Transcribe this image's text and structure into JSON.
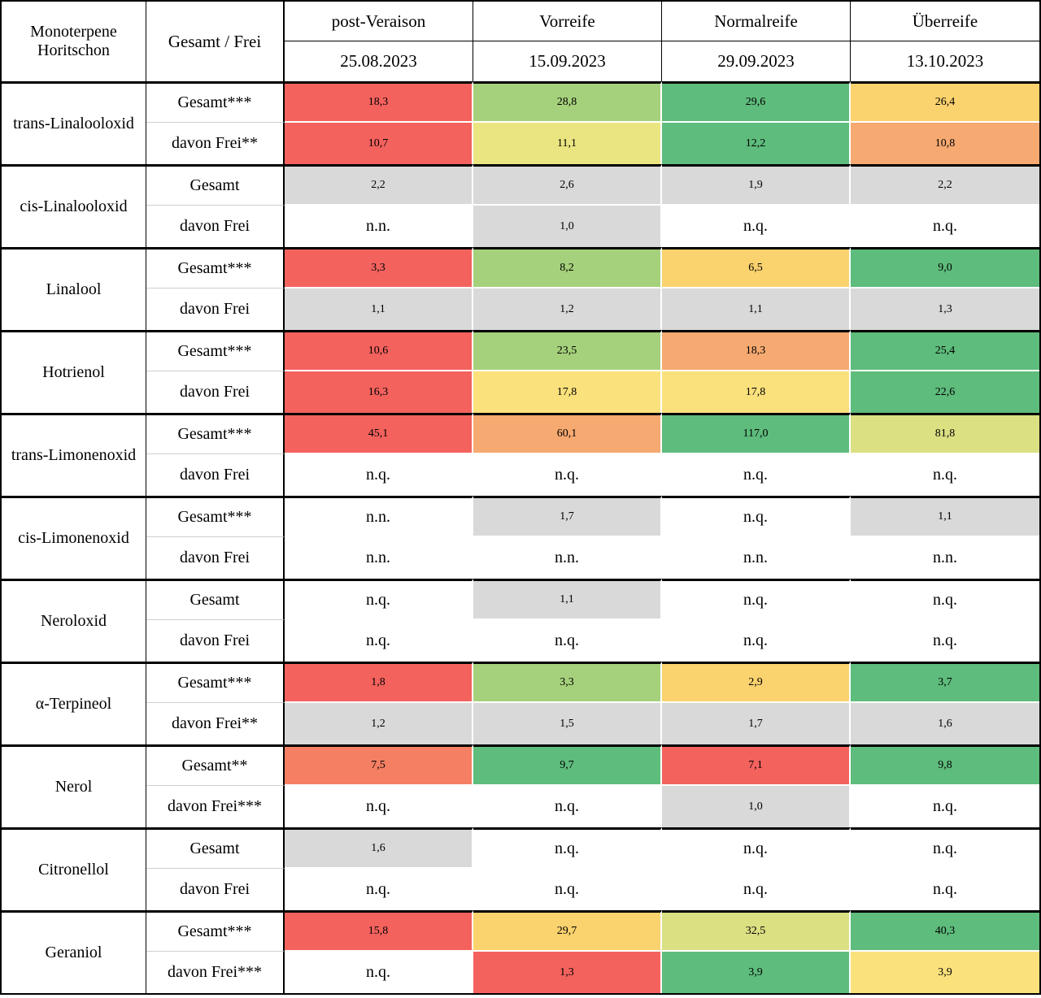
{
  "chart_data": {
    "type": "table",
    "title": "Monoterpene Horitschon",
    "palette": {
      "red": "#F4625E",
      "salmon": "#F57F63",
      "orange": "#F6A971",
      "yellowOrange": "#FAD26E",
      "yellow": "#FAE17C",
      "yellowGreenish": "#EAE581",
      "yellowGreen": "#DBE083",
      "lightGreen": "#A6D17C",
      "green": "#5EBC7C",
      "gray": "#D9D9D9",
      "white": "#FFFFFF"
    },
    "header": {
      "col1": "Monoterpene Horitschon",
      "col2": "Gesamt / Frei",
      "stages": [
        {
          "name": "post-Veraison",
          "date": "25.08.2023"
        },
        {
          "name": "Vorreife",
          "date": "15.09.2023"
        },
        {
          "name": "Normalreife",
          "date": "29.09.2023"
        },
        {
          "name": "Überreife",
          "date": "13.10.2023"
        }
      ]
    },
    "groups": [
      {
        "substance": "trans-Linalooloxid",
        "rows": [
          {
            "label": "Gesamt***",
            "values": [
              "18,3",
              "28,8",
              "29,6",
              "26,4"
            ],
            "colors": [
              "red",
              "lightGreen",
              "green",
              "yellowOrange"
            ]
          },
          {
            "label": "davon Frei**",
            "values": [
              "10,7",
              "11,1",
              "12,2",
              "10,8"
            ],
            "colors": [
              "red",
              "yellowGreenish",
              "green",
              "orange"
            ]
          }
        ]
      },
      {
        "substance": "cis-Linalooloxid",
        "rows": [
          {
            "label": "Gesamt",
            "values": [
              "2,2",
              "2,6",
              "1,9",
              "2,2"
            ],
            "colors": [
              "gray",
              "gray",
              "gray",
              "gray"
            ]
          },
          {
            "label": "davon Frei",
            "values": [
              "n.n.",
              "1,0",
              "n.q.",
              "n.q."
            ],
            "colors": [
              "white",
              "gray",
              "white",
              "white"
            ]
          }
        ]
      },
      {
        "substance": "Linalool",
        "rows": [
          {
            "label": "Gesamt***",
            "values": [
              "3,3",
              "8,2",
              "6,5",
              "9,0"
            ],
            "colors": [
              "red",
              "lightGreen",
              "yellowOrange",
              "green"
            ]
          },
          {
            "label": "davon Frei",
            "values": [
              "1,1",
              "1,2",
              "1,1",
              "1,3"
            ],
            "colors": [
              "gray",
              "gray",
              "gray",
              "gray"
            ]
          }
        ]
      },
      {
        "substance": "Hotrienol",
        "rows": [
          {
            "label": "Gesamt***",
            "values": [
              "10,6",
              "23,5",
              "18,3",
              "25,4"
            ],
            "colors": [
              "red",
              "lightGreen",
              "orange",
              "green"
            ]
          },
          {
            "label": "davon Frei",
            "values": [
              "16,3",
              "17,8",
              "17,8",
              "22,6"
            ],
            "colors": [
              "red",
              "yellow",
              "yellow",
              "green"
            ]
          }
        ]
      },
      {
        "substance": "trans-Limonenoxid",
        "rows": [
          {
            "label": "Gesamt***",
            "values": [
              "45,1",
              "60,1",
              "117,0",
              "81,8"
            ],
            "colors": [
              "red",
              "orange",
              "green",
              "yellowGreen"
            ]
          },
          {
            "label": "davon Frei",
            "values": [
              "n.q.",
              "n.q.",
              "n.q.",
              "n.q."
            ],
            "colors": [
              "white",
              "white",
              "white",
              "white"
            ]
          }
        ]
      },
      {
        "substance": "cis-Limonenoxid",
        "rows": [
          {
            "label": "Gesamt***",
            "values": [
              "n.n.",
              "1,7",
              "n.q.",
              "1,1"
            ],
            "colors": [
              "white",
              "gray",
              "white",
              "gray"
            ]
          },
          {
            "label": "davon Frei",
            "values": [
              "n.n.",
              "n.n.",
              "n.n.",
              "n.n."
            ],
            "colors": [
              "white",
              "white",
              "white",
              "white"
            ]
          }
        ]
      },
      {
        "substance": "Neroloxid",
        "rows": [
          {
            "label": "Gesamt",
            "values": [
              "n.q.",
              "1,1",
              "n.q.",
              "n.q."
            ],
            "colors": [
              "white",
              "gray",
              "white",
              "white"
            ]
          },
          {
            "label": "davon Frei",
            "values": [
              "n.q.",
              "n.q.",
              "n.q.",
              "n.q."
            ],
            "colors": [
              "white",
              "white",
              "white",
              "white"
            ]
          }
        ]
      },
      {
        "substance": "α-Terpineol",
        "rows": [
          {
            "label": "Gesamt***",
            "values": [
              "1,8",
              "3,3",
              "2,9",
              "3,7"
            ],
            "colors": [
              "red",
              "lightGreen",
              "yellowOrange",
              "green"
            ]
          },
          {
            "label": "davon Frei**",
            "values": [
              "1,2",
              "1,5",
              "1,7",
              "1,6"
            ],
            "colors": [
              "gray",
              "gray",
              "gray",
              "gray"
            ]
          }
        ]
      },
      {
        "substance": "Nerol",
        "rows": [
          {
            "label": "Gesamt**",
            "values": [
              "7,5",
              "9,7",
              "7,1",
              "9,8"
            ],
            "colors": [
              "salmon",
              "green",
              "red",
              "green"
            ]
          },
          {
            "label": "davon Frei***",
            "values": [
              "n.q.",
              "n.q.",
              "1,0",
              "n.q."
            ],
            "colors": [
              "white",
              "white",
              "gray",
              "white"
            ]
          }
        ]
      },
      {
        "substance": "Citronellol",
        "rows": [
          {
            "label": "Gesamt",
            "values": [
              "1,6",
              "n.q.",
              "n.q.",
              "n.q."
            ],
            "colors": [
              "gray",
              "white",
              "white",
              "white"
            ]
          },
          {
            "label": "davon Frei",
            "values": [
              "n.q.",
              "n.q.",
              "n.q.",
              "n.q."
            ],
            "colors": [
              "white",
              "white",
              "white",
              "white"
            ]
          }
        ]
      },
      {
        "substance": "Geraniol",
        "rows": [
          {
            "label": "Gesamt***",
            "values": [
              "15,8",
              "29,7",
              "32,5",
              "40,3"
            ],
            "colors": [
              "red",
              "yellowOrange",
              "yellowGreen",
              "green"
            ]
          },
          {
            "label": "davon Frei***",
            "values": [
              "n.q.",
              "1,3",
              "3,9",
              "3,9"
            ],
            "colors": [
              "white",
              "red",
              "green",
              "yellow"
            ]
          }
        ]
      }
    ]
  }
}
